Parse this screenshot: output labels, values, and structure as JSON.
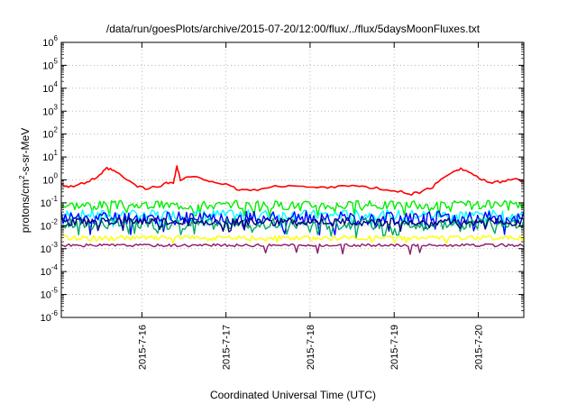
{
  "chart_data": {
    "type": "line",
    "title": "/data/run/goesPlots/archive/2015-07-20/12:00/flux/../flux/5daysMoonFluxes.txt",
    "xlabel": "Coordinated Universal Time (UTC)",
    "ylabel": {
      "prefix": "protons/cm",
      "sup": "2",
      "suffix": "-s-sr-MeV"
    },
    "yscale": "log",
    "ylim_exp": [
      -6,
      6
    ],
    "y_ticks": [
      {
        "base": "10",
        "exp": "6"
      },
      {
        "base": "10",
        "exp": "5"
      },
      {
        "base": "10",
        "exp": "4"
      },
      {
        "base": "10",
        "exp": "3"
      },
      {
        "base": "10",
        "exp": "2"
      },
      {
        "base": "10",
        "exp": "1"
      },
      {
        "base": "10",
        "exp": "0"
      },
      {
        "base": "10",
        "exp": "-1"
      },
      {
        "base": "10",
        "exp": "-2"
      },
      {
        "base": "10",
        "exp": "-3"
      },
      {
        "base": "10",
        "exp": "-4"
      },
      {
        "base": "10",
        "exp": "-5"
      },
      {
        "base": "10",
        "exp": "-6"
      }
    ],
    "xlim": [
      "2015-07-15 01:00",
      "2015-07-20 13:00"
    ],
    "x_ticks": [
      {
        "date": "2015-07-16 00:00",
        "label": "2015-7-16"
      },
      {
        "date": "2015-07-17 00:00",
        "label": "2015-7-17"
      },
      {
        "date": "2015-07-18 00:00",
        "label": "2015-7-18"
      },
      {
        "date": "2015-07-19 00:00",
        "label": "2015-7-19"
      },
      {
        "date": "2015-07-20 00:00",
        "label": "2015-7-20"
      }
    ],
    "grid": true,
    "legend": "none",
    "series": [
      {
        "color": "#ff0000",
        "points": [
          [
            "2015-07-15 01:00",
            0.7
          ],
          [
            "2015-07-15 03:00",
            0.5
          ],
          [
            "2015-07-15 06:00",
            0.6
          ],
          [
            "2015-07-15 09:00",
            0.9
          ],
          [
            "2015-07-15 12:00",
            1.5
          ],
          [
            "2015-07-15 14:00",
            3.2
          ],
          [
            "2015-07-15 16:00",
            2.5
          ],
          [
            "2015-07-15 19:00",
            1.2
          ],
          [
            "2015-07-15 22:00",
            0.6
          ],
          [
            "2015-07-16 01:00",
            0.4
          ],
          [
            "2015-07-16 04:00",
            0.5
          ],
          [
            "2015-07-16 07:00",
            0.7
          ],
          [
            "2015-07-16 09:00",
            0.8
          ],
          [
            "2015-07-16 10:00",
            4.0
          ],
          [
            "2015-07-16 11:00",
            1.0
          ],
          [
            "2015-07-16 14:00",
            1.4
          ],
          [
            "2015-07-16 17:00",
            1.1
          ],
          [
            "2015-07-16 20:00",
            0.9
          ],
          [
            "2015-07-17 00:00",
            0.6
          ],
          [
            "2015-07-17 03:00",
            0.4
          ],
          [
            "2015-07-17 06:00",
            0.35
          ],
          [
            "2015-07-17 10:00",
            0.4
          ],
          [
            "2015-07-17 14:00",
            0.5
          ],
          [
            "2015-07-17 18:00",
            0.6
          ],
          [
            "2015-07-17 22:00",
            0.5
          ],
          [
            "2015-07-18 02:00",
            0.45
          ],
          [
            "2015-07-18 06:00",
            0.5
          ],
          [
            "2015-07-18 10:00",
            0.6
          ],
          [
            "2015-07-18 14:00",
            0.5
          ],
          [
            "2015-07-18 18:00",
            0.45
          ],
          [
            "2015-07-18 22:00",
            0.35
          ],
          [
            "2015-07-19 02:00",
            0.3
          ],
          [
            "2015-07-19 05:00",
            0.25
          ],
          [
            "2015-07-19 08:00",
            0.3
          ],
          [
            "2015-07-19 11:00",
            0.5
          ],
          [
            "2015-07-19 14:00",
            1.2
          ],
          [
            "2015-07-19 17:00",
            2.6
          ],
          [
            "2015-07-19 19:00",
            3.1
          ],
          [
            "2015-07-19 22:00",
            2.0
          ],
          [
            "2015-07-20 01:00",
            1.0
          ],
          [
            "2015-07-20 04:00",
            0.7
          ],
          [
            "2015-07-20 07:00",
            0.9
          ],
          [
            "2015-07-20 10:00",
            1.1
          ],
          [
            "2015-07-20 13:00",
            0.8
          ]
        ]
      },
      {
        "color": "#00ee00",
        "mean": 0.08,
        "amp": 0.2,
        "seed": 3
      },
      {
        "color": "#00ffff",
        "mean": 0.03,
        "amp": 0.22,
        "seed": 7
      },
      {
        "color": "#0000ff",
        "mean": 0.022,
        "amp": 0.3,
        "seed": 11
      },
      {
        "color": "#00aa66",
        "mean": 0.012,
        "amp": 0.25,
        "seed": 17
      },
      {
        "color": "#000080",
        "mean": 0.015,
        "amp": 0.18,
        "seed": 23
      },
      {
        "color": "#ffff00",
        "mean": 0.003,
        "amp": 0.1,
        "seed": 29
      },
      {
        "color": "#8b1a6b",
        "mean": 0.0014,
        "amp": 0.06,
        "seed": 31,
        "dips": true
      }
    ]
  }
}
